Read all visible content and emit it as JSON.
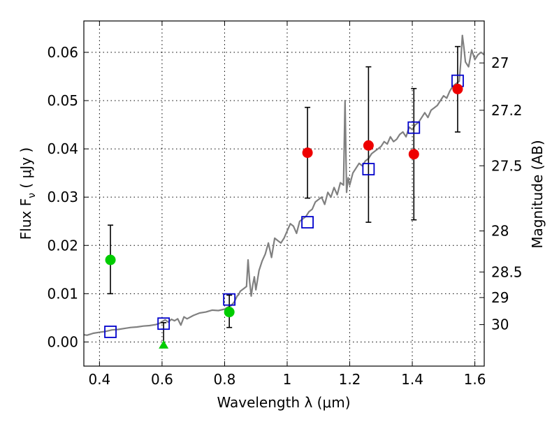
{
  "chart_data": {
    "type": "scatter",
    "xlabel": "Wavelength  λ (μm)",
    "ylabel": "Flux  F",
    "ylabel_sub": "ν",
    "ylabel_unit": " ( μJy )",
    "y2label": "Magnitude (AB)",
    "xlim": [
      0.35,
      1.63
    ],
    "ylim": [
      -0.005,
      0.0665
    ],
    "grid": true,
    "x_ticks": [
      {
        "value": 0.4,
        "label": "0.4"
      },
      {
        "value": 0.6,
        "label": "0.6"
      },
      {
        "value": 0.8,
        "label": "0.8"
      },
      {
        "value": 1.0,
        "label": "1"
      },
      {
        "value": 1.2,
        "label": "1.2"
      },
      {
        "value": 1.4,
        "label": "1.4"
      },
      {
        "value": 1.6,
        "label": "1.6"
      }
    ],
    "y_ticks": [
      {
        "value": 0.0,
        "label": "0.00"
      },
      {
        "value": 0.01,
        "label": "0.01"
      },
      {
        "value": 0.02,
        "label": "0.02"
      },
      {
        "value": 0.03,
        "label": "0.03"
      },
      {
        "value": 0.04,
        "label": "0.04"
      },
      {
        "value": 0.05,
        "label": "0.05"
      },
      {
        "value": 0.06,
        "label": "0.06"
      }
    ],
    "y2_ticks": [
      {
        "flux": 0.0578,
        "label": "27"
      },
      {
        "flux": 0.048,
        "label": "27.2"
      },
      {
        "flux": 0.0365,
        "label": "27.5"
      },
      {
        "flux": 0.023,
        "label": "28"
      },
      {
        "flux": 0.0145,
        "label": "28.5"
      },
      {
        "flux": 0.0092,
        "label": "29"
      },
      {
        "flux": 0.0036,
        "label": "30"
      }
    ],
    "model_spectrum": {
      "color": "#808080",
      "x": [
        0.35,
        0.36,
        0.37,
        0.38,
        0.4,
        0.42,
        0.44,
        0.46,
        0.48,
        0.5,
        0.52,
        0.54,
        0.56,
        0.58,
        0.59,
        0.6,
        0.61,
        0.62,
        0.63,
        0.64,
        0.65,
        0.66,
        0.67,
        0.68,
        0.7,
        0.72,
        0.74,
        0.76,
        0.78,
        0.8,
        0.81,
        0.82,
        0.83,
        0.84,
        0.845,
        0.85,
        0.86,
        0.87,
        0.875,
        0.88,
        0.885,
        0.89,
        0.895,
        0.9,
        0.91,
        0.92,
        0.93,
        0.94,
        0.95,
        0.96,
        0.97,
        0.98,
        0.99,
        1.0,
        1.01,
        1.02,
        1.03,
        1.04,
        1.05,
        1.06,
        1.07,
        1.08,
        1.09,
        1.1,
        1.11,
        1.12,
        1.13,
        1.14,
        1.15,
        1.16,
        1.17,
        1.18,
        1.185,
        1.19,
        1.195,
        1.2,
        1.21,
        1.22,
        1.23,
        1.24,
        1.25,
        1.26,
        1.27,
        1.28,
        1.29,
        1.3,
        1.31,
        1.32,
        1.33,
        1.34,
        1.35,
        1.36,
        1.37,
        1.38,
        1.39,
        1.4,
        1.41,
        1.42,
        1.43,
        1.44,
        1.45,
        1.46,
        1.47,
        1.48,
        1.49,
        1.5,
        1.51,
        1.52,
        1.53,
        1.54,
        1.55,
        1.555,
        1.56,
        1.565,
        1.57,
        1.58,
        1.59,
        1.6,
        1.61,
        1.62,
        1.63
      ],
      "y": [
        0.0015,
        0.0014,
        0.0016,
        0.0018,
        0.002,
        0.0022,
        0.0025,
        0.0026,
        0.0028,
        0.003,
        0.0031,
        0.0033,
        0.0034,
        0.0036,
        0.0038,
        0.0042,
        0.0046,
        0.0041,
        0.0047,
        0.0044,
        0.0048,
        0.0035,
        0.0052,
        0.0048,
        0.0055,
        0.006,
        0.0062,
        0.0066,
        0.0065,
        0.0068,
        0.0072,
        0.0075,
        0.0082,
        0.0095,
        0.0098,
        0.0105,
        0.011,
        0.0115,
        0.017,
        0.0125,
        0.0095,
        0.0118,
        0.0135,
        0.0108,
        0.0148,
        0.0168,
        0.0182,
        0.0205,
        0.0175,
        0.0215,
        0.021,
        0.0205,
        0.0215,
        0.023,
        0.0245,
        0.024,
        0.0225,
        0.025,
        0.0255,
        0.026,
        0.027,
        0.0275,
        0.029,
        0.0295,
        0.03,
        0.0285,
        0.031,
        0.03,
        0.032,
        0.0305,
        0.033,
        0.0325,
        0.05,
        0.031,
        0.034,
        0.0325,
        0.035,
        0.036,
        0.037,
        0.0365,
        0.0375,
        0.038,
        0.039,
        0.0395,
        0.04,
        0.0405,
        0.0415,
        0.041,
        0.0425,
        0.0415,
        0.042,
        0.043,
        0.0435,
        0.0425,
        0.0445,
        0.044,
        0.045,
        0.0455,
        0.0465,
        0.0475,
        0.0465,
        0.048,
        0.0485,
        0.049,
        0.05,
        0.051,
        0.0505,
        0.052,
        0.053,
        0.0535,
        0.054,
        0.058,
        0.0635,
        0.061,
        0.058,
        0.057,
        0.0605,
        0.0585,
        0.0595,
        0.06,
        0.0595
      ]
    },
    "model_points": {
      "color": "#0000cc",
      "marker": "open-square",
      "x": [
        0.435,
        0.605,
        0.815,
        1.065,
        1.26,
        1.405,
        1.545
      ],
      "y": [
        0.0021,
        0.0038,
        0.0088,
        0.0248,
        0.0358,
        0.0444,
        0.0541
      ]
    },
    "observed_detections": {
      "marker": "filled-circle",
      "points": [
        {
          "x": 0.435,
          "y": 0.017,
          "yerr_low": 0.01,
          "yerr_high": 0.0242,
          "color": "#00cc00"
        },
        {
          "x": 0.815,
          "y": 0.0062,
          "yerr_low": 0.003,
          "yerr_high": 0.0097,
          "color": "#00cc00"
        },
        {
          "x": 1.065,
          "y": 0.0392,
          "yerr_low": 0.0298,
          "yerr_high": 0.0486,
          "color": "#ee0000"
        },
        {
          "x": 1.26,
          "y": 0.0407,
          "yerr_low": 0.0248,
          "yerr_high": 0.057,
          "color": "#ee0000"
        },
        {
          "x": 1.405,
          "y": 0.0389,
          "yerr_low": 0.0253,
          "yerr_high": 0.0525,
          "color": "#ee0000"
        },
        {
          "x": 1.545,
          "y": 0.0524,
          "yerr_low": 0.0435,
          "yerr_high": 0.0612,
          "color": "#ee0000"
        }
      ]
    },
    "observed_limits": {
      "marker": "filled-triangle",
      "points": [
        {
          "x": 0.605,
          "y": -0.0005,
          "yerr_high": 0.004,
          "color": "#00cc00"
        }
      ]
    }
  }
}
